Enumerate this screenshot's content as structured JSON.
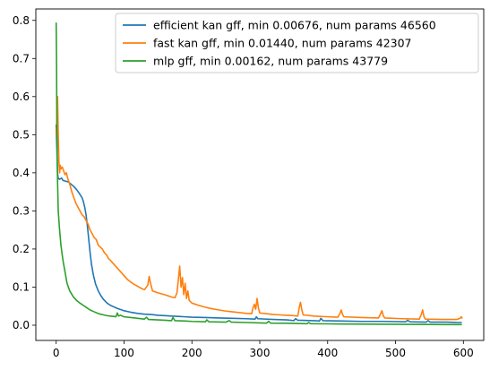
{
  "chart_data": {
    "type": "line",
    "title": "",
    "xlabel": "",
    "ylabel": "",
    "xlim": [
      -30,
      630
    ],
    "ylim": [
      -0.04,
      0.83
    ],
    "xticks": [
      0,
      100,
      200,
      300,
      400,
      500,
      600
    ],
    "xtick_labels": [
      "0",
      "100",
      "200",
      "300",
      "400",
      "500",
      "600"
    ],
    "yticks": [
      0.0,
      0.1,
      0.2,
      0.3,
      0.4,
      0.5,
      0.6,
      0.7,
      0.8
    ],
    "ytick_labels": [
      "0.0",
      "0.1",
      "0.2",
      "0.3",
      "0.4",
      "0.5",
      "0.6",
      "0.7",
      "0.8"
    ],
    "grid": false,
    "legend_position": "top-right",
    "series": [
      {
        "name": "efficient kan gff, min 0.00676, num params 46560",
        "color": "#1f77b4",
        "points": [
          [
            0,
            0.525
          ],
          [
            1,
            0.46
          ],
          [
            2,
            0.4
          ],
          [
            3,
            0.385
          ],
          [
            5,
            0.383
          ],
          [
            8,
            0.386
          ],
          [
            10,
            0.38
          ],
          [
            14,
            0.378
          ],
          [
            18,
            0.376
          ],
          [
            22,
            0.37
          ],
          [
            26,
            0.364
          ],
          [
            30,
            0.356
          ],
          [
            34,
            0.346
          ],
          [
            38,
            0.335
          ],
          [
            40,
            0.325
          ],
          [
            42,
            0.31
          ],
          [
            44,
            0.29
          ],
          [
            46,
            0.26
          ],
          [
            48,
            0.225
          ],
          [
            50,
            0.19
          ],
          [
            52,
            0.16
          ],
          [
            55,
            0.13
          ],
          [
            58,
            0.108
          ],
          [
            62,
            0.09
          ],
          [
            66,
            0.077
          ],
          [
            70,
            0.067
          ],
          [
            75,
            0.058
          ],
          [
            80,
            0.052
          ],
          [
            85,
            0.048
          ],
          [
            90,
            0.044
          ],
          [
            95,
            0.041
          ],
          [
            100,
            0.038
          ],
          [
            110,
            0.034
          ],
          [
            120,
            0.031
          ],
          [
            130,
            0.029
          ],
          [
            140,
            0.028
          ],
          [
            150,
            0.026
          ],
          [
            160,
            0.025
          ],
          [
            170,
            0.024
          ],
          [
            180,
            0.023
          ],
          [
            190,
            0.022
          ],
          [
            200,
            0.021
          ],
          [
            220,
            0.02
          ],
          [
            240,
            0.019
          ],
          [
            260,
            0.018
          ],
          [
            280,
            0.017
          ],
          [
            293,
            0.016
          ],
          [
            295,
            0.022
          ],
          [
            297,
            0.017
          ],
          [
            320,
            0.015
          ],
          [
            340,
            0.014
          ],
          [
            350,
            0.012
          ],
          [
            353,
            0.017
          ],
          [
            356,
            0.013
          ],
          [
            380,
            0.012
          ],
          [
            388,
            0.011
          ],
          [
            390,
            0.018
          ],
          [
            393,
            0.012
          ],
          [
            420,
            0.011
          ],
          [
            450,
            0.01
          ],
          [
            480,
            0.01
          ],
          [
            515,
            0.009
          ],
          [
            518,
            0.013
          ],
          [
            521,
            0.009
          ],
          [
            545,
            0.008
          ],
          [
            548,
            0.012
          ],
          [
            551,
            0.008
          ],
          [
            575,
            0.008
          ],
          [
            590,
            0.007
          ],
          [
            597,
            0.007
          ]
        ]
      },
      {
        "name": "fast kan gff, min 0.01440, num params 42307",
        "color": "#ff7f0e",
        "points": [
          [
            0,
            0.5
          ],
          [
            1,
            0.53
          ],
          [
            2,
            0.6
          ],
          [
            3,
            0.5
          ],
          [
            4,
            0.43
          ],
          [
            5,
            0.4
          ],
          [
            6,
            0.42
          ],
          [
            7,
            0.41
          ],
          [
            9,
            0.415
          ],
          [
            11,
            0.405
          ],
          [
            13,
            0.395
          ],
          [
            15,
            0.4
          ],
          [
            17,
            0.385
          ],
          [
            20,
            0.37
          ],
          [
            23,
            0.35
          ],
          [
            26,
            0.335
          ],
          [
            29,
            0.32
          ],
          [
            32,
            0.31
          ],
          [
            35,
            0.3
          ],
          [
            38,
            0.29
          ],
          [
            41,
            0.285
          ],
          [
            44,
            0.275
          ],
          [
            47,
            0.265
          ],
          [
            50,
            0.25
          ],
          [
            53,
            0.24
          ],
          [
            56,
            0.23
          ],
          [
            59,
            0.225
          ],
          [
            62,
            0.21
          ],
          [
            65,
            0.205
          ],
          [
            68,
            0.2
          ],
          [
            71,
            0.19
          ],
          [
            74,
            0.185
          ],
          [
            77,
            0.175
          ],
          [
            80,
            0.17
          ],
          [
            85,
            0.16
          ],
          [
            90,
            0.15
          ],
          [
            95,
            0.14
          ],
          [
            100,
            0.13
          ],
          [
            105,
            0.12
          ],
          [
            110,
            0.113
          ],
          [
            115,
            0.107
          ],
          [
            120,
            0.102
          ],
          [
            125,
            0.097
          ],
          [
            130,
            0.093
          ],
          [
            135,
            0.105
          ],
          [
            137,
            0.128
          ],
          [
            139,
            0.11
          ],
          [
            142,
            0.09
          ],
          [
            150,
            0.085
          ],
          [
            160,
            0.08
          ],
          [
            170,
            0.074
          ],
          [
            175,
            0.072
          ],
          [
            178,
            0.085
          ],
          [
            180,
            0.12
          ],
          [
            182,
            0.155
          ],
          [
            184,
            0.1
          ],
          [
            186,
            0.125
          ],
          [
            188,
            0.08
          ],
          [
            190,
            0.11
          ],
          [
            192,
            0.07
          ],
          [
            194,
            0.09
          ],
          [
            196,
            0.065
          ],
          [
            200,
            0.058
          ],
          [
            210,
            0.052
          ],
          [
            220,
            0.047
          ],
          [
            230,
            0.043
          ],
          [
            240,
            0.04
          ],
          [
            250,
            0.037
          ],
          [
            260,
            0.035
          ],
          [
            270,
            0.033
          ],
          [
            280,
            0.031
          ],
          [
            288,
            0.03
          ],
          [
            290,
            0.045
          ],
          [
            292,
            0.055
          ],
          [
            294,
            0.042
          ],
          [
            296,
            0.07
          ],
          [
            298,
            0.045
          ],
          [
            300,
            0.032
          ],
          [
            310,
            0.03
          ],
          [
            320,
            0.028
          ],
          [
            330,
            0.027
          ],
          [
            340,
            0.026
          ],
          [
            350,
            0.025
          ],
          [
            356,
            0.024
          ],
          [
            358,
            0.045
          ],
          [
            360,
            0.06
          ],
          [
            362,
            0.04
          ],
          [
            364,
            0.027
          ],
          [
            380,
            0.024
          ],
          [
            400,
            0.022
          ],
          [
            415,
            0.021
          ],
          [
            418,
            0.03
          ],
          [
            420,
            0.04
          ],
          [
            422,
            0.028
          ],
          [
            424,
            0.022
          ],
          [
            450,
            0.02
          ],
          [
            475,
            0.019
          ],
          [
            478,
            0.03
          ],
          [
            480,
            0.038
          ],
          [
            482,
            0.025
          ],
          [
            484,
            0.019
          ],
          [
            510,
            0.017
          ],
          [
            535,
            0.016
          ],
          [
            538,
            0.028
          ],
          [
            540,
            0.04
          ],
          [
            542,
            0.022
          ],
          [
            544,
            0.016
          ],
          [
            570,
            0.015
          ],
          [
            590,
            0.015
          ],
          [
            595,
            0.018
          ],
          [
            597,
            0.022
          ],
          [
            598,
            0.019
          ]
        ]
      },
      {
        "name": "mlp gff, min 0.00162, num params 43779",
        "color": "#2ca02c",
        "points": [
          [
            0,
            0.793
          ],
          [
            0.5,
            0.7
          ],
          [
            1,
            0.52
          ],
          [
            2,
            0.38
          ],
          [
            3,
            0.3
          ],
          [
            5,
            0.25
          ],
          [
            7,
            0.21
          ],
          [
            10,
            0.17
          ],
          [
            13,
            0.14
          ],
          [
            16,
            0.11
          ],
          [
            20,
            0.09
          ],
          [
            25,
            0.075
          ],
          [
            30,
            0.065
          ],
          [
            35,
            0.058
          ],
          [
            40,
            0.052
          ],
          [
            45,
            0.046
          ],
          [
            50,
            0.04
          ],
          [
            55,
            0.036
          ],
          [
            60,
            0.032
          ],
          [
            65,
            0.029
          ],
          [
            70,
            0.027
          ],
          [
            75,
            0.025
          ],
          [
            80,
            0.024
          ],
          [
            85,
            0.023
          ],
          [
            88,
            0.022
          ],
          [
            90,
            0.032
          ],
          [
            92,
            0.024
          ],
          [
            95,
            0.026
          ],
          [
            100,
            0.022
          ],
          [
            110,
            0.02
          ],
          [
            120,
            0.018
          ],
          [
            130,
            0.016
          ],
          [
            133,
            0.021
          ],
          [
            136,
            0.015
          ],
          [
            150,
            0.014
          ],
          [
            160,
            0.013
          ],
          [
            170,
            0.012
          ],
          [
            172,
            0.02
          ],
          [
            175,
            0.012
          ],
          [
            190,
            0.011
          ],
          [
            200,
            0.01
          ],
          [
            220,
            0.009
          ],
          [
            222,
            0.014
          ],
          [
            225,
            0.009
          ],
          [
            250,
            0.008
          ],
          [
            255,
            0.012
          ],
          [
            258,
            0.008
          ],
          [
            280,
            0.007
          ],
          [
            300,
            0.006
          ],
          [
            310,
            0.0055
          ],
          [
            313,
            0.01
          ],
          [
            316,
            0.0055
          ],
          [
            340,
            0.005
          ],
          [
            370,
            0.004
          ],
          [
            372,
            0.007
          ],
          [
            375,
            0.004
          ],
          [
            400,
            0.0035
          ],
          [
            430,
            0.003
          ],
          [
            460,
            0.0027
          ],
          [
            490,
            0.0024
          ],
          [
            520,
            0.0021
          ],
          [
            550,
            0.0019
          ],
          [
            580,
            0.0017
          ],
          [
            597,
            0.0016
          ]
        ]
      }
    ]
  }
}
